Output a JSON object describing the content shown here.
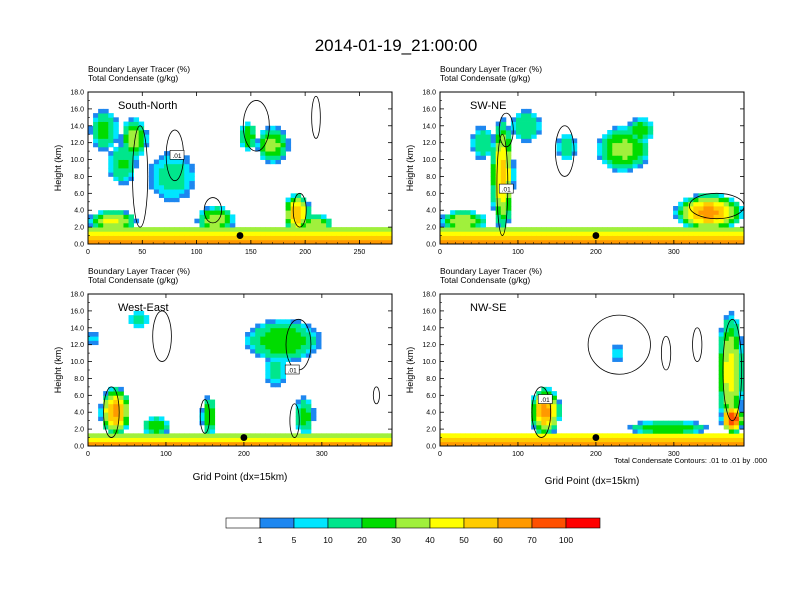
{
  "figure": {
    "title": "2014-01-19_21:00:00",
    "contour_note": "Total Condensate Contours: .01 to .01 by .000",
    "contour_label": ".01"
  },
  "colors": {
    "levels": [
      "#ffffff",
      "#1e87f0",
      "#00e6ff",
      "#00e68c",
      "#00dc00",
      "#a0f03c",
      "#ffff00",
      "#ffcc00",
      "#ff9900",
      "#ff5000",
      "#ff0000"
    ],
    "contour": "#000000"
  },
  "chart_data": [
    {
      "type": "heatmap",
      "title": "South-North",
      "subtitle_lines": [
        "Boundary Layer Tracer   (%)",
        "Total Condensate   (g/kg)"
      ],
      "ylabel": "Height (km)",
      "xlabel": "",
      "xlim": [
        0,
        280
      ],
      "ylim": [
        0,
        18
      ],
      "xticks": [
        0,
        50,
        100,
        150,
        200,
        250
      ],
      "xtick_labels": [
        "0",
        "50",
        "100",
        "150",
        "200",
        "250"
      ],
      "yticks": [
        0,
        2,
        4,
        6,
        8,
        10,
        12,
        14,
        16,
        18
      ],
      "ytick_labels": [
        "0.0",
        "2.0",
        "4.0",
        "6.0",
        "8.0",
        "10.0",
        "12.0",
        "14.0",
        "16.0",
        "18.0"
      ],
      "marker": {
        "x": 140,
        "y": 1.0
      },
      "contour_label_pos": {
        "x": 82,
        "y": 10.5
      },
      "features": [
        {
          "kind": "surface",
          "x0": 0,
          "x1": 280,
          "top": 1.8,
          "peak": 75
        },
        {
          "kind": "plume",
          "x0": 2,
          "x1": 28,
          "ybot": 11,
          "ytop": 16,
          "peak": 25
        },
        {
          "kind": "plume",
          "x0": 18,
          "x1": 45,
          "ybot": 7,
          "ytop": 12,
          "peak": 22
        },
        {
          "kind": "plume",
          "x0": 30,
          "x1": 55,
          "ybot": 10,
          "ytop": 15,
          "peak": 35
        },
        {
          "kind": "plume",
          "x0": 55,
          "x1": 100,
          "ybot": 5,
          "ytop": 11,
          "peak": 15
        },
        {
          "kind": "plume",
          "x0": 140,
          "x1": 155,
          "ybot": 11,
          "ytop": 14.5,
          "peak": 30
        },
        {
          "kind": "plume",
          "x0": 155,
          "x1": 185,
          "ybot": 9.5,
          "ytop": 14,
          "peak": 35
        },
        {
          "kind": "plume",
          "x0": 0,
          "x1": 45,
          "ybot": 1.5,
          "ytop": 4,
          "peak": 45
        },
        {
          "kind": "plume",
          "x0": 100,
          "x1": 135,
          "ybot": 1.2,
          "ytop": 4.5,
          "peak": 40
        },
        {
          "kind": "plume",
          "x0": 180,
          "x1": 205,
          "ybot": 1.2,
          "ytop": 6,
          "peak": 60
        },
        {
          "kind": "plume",
          "x0": 195,
          "x1": 225,
          "ybot": 1.2,
          "ytop": 3.5,
          "peak": 40
        }
      ],
      "contours": [
        {
          "cx": 48,
          "cy": 8,
          "rx": 7,
          "ry": 6
        },
        {
          "cx": 155,
          "cy": 14,
          "rx": 12,
          "ry": 3
        },
        {
          "cx": 210,
          "cy": 15,
          "rx": 4,
          "ry": 2.5
        },
        {
          "cx": 80,
          "cy": 10.5,
          "rx": 8,
          "ry": 3
        },
        {
          "cx": 195,
          "cy": 4,
          "rx": 6,
          "ry": 2
        },
        {
          "cx": 115,
          "cy": 4,
          "rx": 8,
          "ry": 1.5
        }
      ]
    },
    {
      "type": "heatmap",
      "title": "SW-NE",
      "subtitle_lines": [
        "Boundary Layer Tracer   (%)",
        "Total Condensate   (g/kg)"
      ],
      "ylabel": "Height (km)",
      "xlabel": "",
      "xlim": [
        0,
        390
      ],
      "ylim": [
        0,
        18
      ],
      "xticks": [
        0,
        100,
        200,
        300
      ],
      "xtick_labels": [
        "0",
        "100",
        "200",
        "300"
      ],
      "yticks": [
        0,
        2,
        4,
        6,
        8,
        10,
        12,
        14,
        16,
        18
      ],
      "ytick_labels": [
        "0.0",
        "2.0",
        "4.0",
        "6.0",
        "8.0",
        "10.0",
        "12.0",
        "14.0",
        "16.0",
        "18.0"
      ],
      "marker": {
        "x": 200,
        "y": 1.0
      },
      "contour_label_pos": {
        "x": 85,
        "y": 6.5
      },
      "features": [
        {
          "kind": "surface",
          "x0": 0,
          "x1": 390,
          "top": 1.8,
          "peak": 75
        },
        {
          "kind": "plume",
          "x0": 65,
          "x1": 95,
          "ybot": 1.5,
          "ytop": 15,
          "peak": 55
        },
        {
          "kind": "plume",
          "x0": 40,
          "x1": 70,
          "ybot": 10,
          "ytop": 14,
          "peak": 20
        },
        {
          "kind": "plume",
          "x0": 90,
          "x1": 130,
          "ybot": 12,
          "ytop": 16,
          "peak": 18
        },
        {
          "kind": "plume",
          "x0": 200,
          "x1": 270,
          "ybot": 8.5,
          "ytop": 14,
          "peak": 35
        },
        {
          "kind": "plume",
          "x0": 240,
          "x1": 275,
          "ybot": 12,
          "ytop": 15,
          "peak": 30
        },
        {
          "kind": "plume",
          "x0": 150,
          "x1": 175,
          "ybot": 10,
          "ytop": 13,
          "peak": 22
        },
        {
          "kind": "plume",
          "x0": 0,
          "x1": 60,
          "ybot": 1.5,
          "ytop": 4,
          "peak": 40
        },
        {
          "kind": "plume",
          "x0": 300,
          "x1": 390,
          "ybot": 1.5,
          "ytop": 6,
          "peak": 65
        }
      ],
      "contours": [
        {
          "cx": 80,
          "cy": 7,
          "rx": 7,
          "ry": 6
        },
        {
          "cx": 160,
          "cy": 11,
          "rx": 12,
          "ry": 3
        },
        {
          "cx": 355,
          "cy": 4.5,
          "rx": 35,
          "ry": 1.5
        },
        {
          "cx": 85,
          "cy": 13.5,
          "rx": 9,
          "ry": 2
        }
      ]
    },
    {
      "type": "heatmap",
      "title": "West-East",
      "subtitle_lines": [
        "Boundary Layer Tracer   (%)",
        "Total Condensate   (g/kg)"
      ],
      "ylabel": "Height (km)",
      "xlabel": "Grid Point (dx=15km)",
      "xlim": [
        0,
        390
      ],
      "ylim": [
        0,
        18
      ],
      "xticks": [
        0,
        100,
        200,
        300
      ],
      "xtick_labels": [
        "0",
        "100",
        "200",
        "300"
      ],
      "yticks": [
        0,
        2,
        4,
        6,
        8,
        10,
        12,
        14,
        16,
        18
      ],
      "ytick_labels": [
        "0.0",
        "2.0",
        "4.0",
        "6.0",
        "8.0",
        "10.0",
        "12.0",
        "14.0",
        "16.0",
        "18.0"
      ],
      "marker": {
        "x": 200,
        "y": 1.0
      },
      "contour_label_pos": {
        "x": 262,
        "y": 9
      },
      "features": [
        {
          "kind": "surface",
          "x0": 0,
          "x1": 390,
          "top": 1.3,
          "peak": 70
        },
        {
          "kind": "plume",
          "x0": 15,
          "x1": 55,
          "ybot": 1.2,
          "ytop": 7,
          "peak": 65
        },
        {
          "kind": "plume",
          "x0": 145,
          "x1": 165,
          "ybot": 1.2,
          "ytop": 6,
          "peak": 30
        },
        {
          "kind": "plume",
          "x0": 200,
          "x1": 300,
          "ybot": 10,
          "ytop": 15,
          "peak": 30
        },
        {
          "kind": "plume",
          "x0": 225,
          "x1": 255,
          "ybot": 7,
          "ytop": 11,
          "peak": 15
        },
        {
          "kind": "plume",
          "x0": 265,
          "x1": 290,
          "ybot": 1.2,
          "ytop": 6,
          "peak": 25
        },
        {
          "kind": "plume",
          "x0": 70,
          "x1": 105,
          "ybot": 1.2,
          "ytop": 3.5,
          "peak": 30
        },
        {
          "kind": "plume",
          "x0": 50,
          "x1": 80,
          "ybot": 14,
          "ytop": 16,
          "peak": 15
        },
        {
          "kind": "plume",
          "x0": 0,
          "x1": 15,
          "ybot": 12,
          "ytop": 13.5,
          "peak": 10
        }
      ],
      "contours": [
        {
          "cx": 95,
          "cy": 13,
          "rx": 12,
          "ry": 3
        },
        {
          "cx": 270,
          "cy": 12,
          "rx": 16,
          "ry": 3
        },
        {
          "cx": 30,
          "cy": 4,
          "rx": 10,
          "ry": 3
        },
        {
          "cx": 150,
          "cy": 3.5,
          "rx": 6,
          "ry": 2
        },
        {
          "cx": 370,
          "cy": 6,
          "rx": 4,
          "ry": 1
        },
        {
          "cx": 265,
          "cy": 3,
          "rx": 6,
          "ry": 2
        }
      ]
    },
    {
      "type": "heatmap",
      "title": "NW-SE",
      "subtitle_lines": [
        "Boundary Layer Tracer   (%)",
        "Total Condensate   (g/kg)"
      ],
      "ylabel": "Height (km)",
      "xlabel": "Grid Point (dx=15km)",
      "xlim": [
        0,
        390
      ],
      "ylim": [
        0,
        18
      ],
      "xticks": [
        0,
        100,
        200,
        300
      ],
      "xtick_labels": [
        "0",
        "100",
        "200",
        "300"
      ],
      "yticks": [
        0,
        2,
        4,
        6,
        8,
        10,
        12,
        14,
        16,
        18
      ],
      "ytick_labels": [
        "0.0",
        "2.0",
        "4.0",
        "6.0",
        "8.0",
        "10.0",
        "12.0",
        "14.0",
        "16.0",
        "18.0"
      ],
      "marker": {
        "x": 200,
        "y": 1.0
      },
      "contour_label_pos": {
        "x": 135,
        "y": 5.5
      },
      "features": [
        {
          "kind": "surface",
          "x0": 0,
          "x1": 390,
          "top": 1.5,
          "peak": 75
        },
        {
          "kind": "plume",
          "x0": 115,
          "x1": 155,
          "ybot": 1.2,
          "ytop": 7,
          "peak": 65
        },
        {
          "kind": "plume",
          "x0": 355,
          "x1": 390,
          "ybot": 1.5,
          "ytop": 16,
          "peak": 45
        },
        {
          "kind": "plume",
          "x0": 360,
          "x1": 390,
          "ybot": 1.5,
          "ytop": 5,
          "peak": 80
        },
        {
          "kind": "plume",
          "x0": 220,
          "x1": 235,
          "ybot": 10,
          "ytop": 12,
          "peak": 12
        },
        {
          "kind": "plume",
          "x0": 240,
          "x1": 345,
          "ybot": 1.3,
          "ytop": 3,
          "peak": 30
        }
      ],
      "contours": [
        {
          "cx": 230,
          "cy": 12,
          "rx": 40,
          "ry": 3.5
        },
        {
          "cx": 375,
          "cy": 9,
          "rx": 12,
          "ry": 6
        },
        {
          "cx": 130,
          "cy": 4,
          "rx": 12,
          "ry": 3
        },
        {
          "cx": 290,
          "cy": 11,
          "rx": 6,
          "ry": 2
        },
        {
          "cx": 330,
          "cy": 12,
          "rx": 6,
          "ry": 2
        }
      ]
    }
  ],
  "legend": {
    "labels": [
      "1",
      "5",
      "10",
      "20",
      "30",
      "40",
      "50",
      "60",
      "70",
      "100"
    ]
  }
}
